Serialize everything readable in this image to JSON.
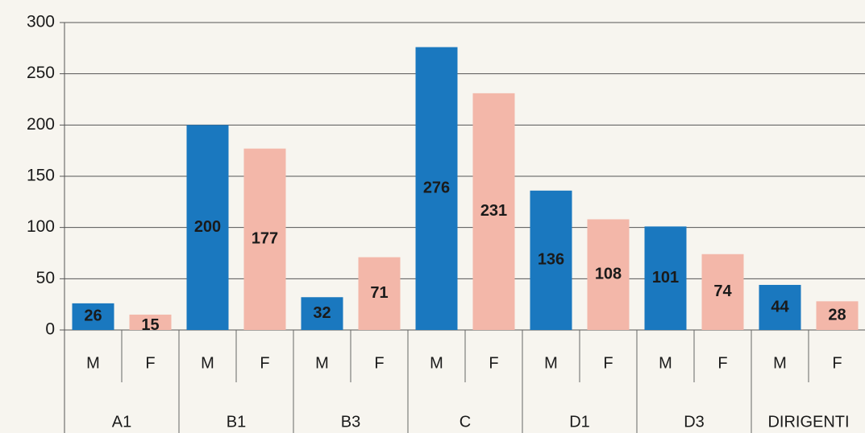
{
  "chart_data": {
    "type": "bar",
    "categories": [
      "A1",
      "B1",
      "B3",
      "C",
      "D1",
      "D3",
      "DIRIGENTI"
    ],
    "series": [
      {
        "name": "M",
        "color": "#1a78bf",
        "values": [
          26,
          200,
          32,
          276,
          136,
          101,
          44
        ]
      },
      {
        "name": "F",
        "color": "#f3b7a9",
        "values": [
          15,
          177,
          71,
          231,
          108,
          74,
          28
        ]
      }
    ],
    "ylim": [
      0,
      300
    ],
    "yticks": [
      0,
      50,
      100,
      150,
      200,
      250,
      300
    ],
    "grid": true
  }
}
